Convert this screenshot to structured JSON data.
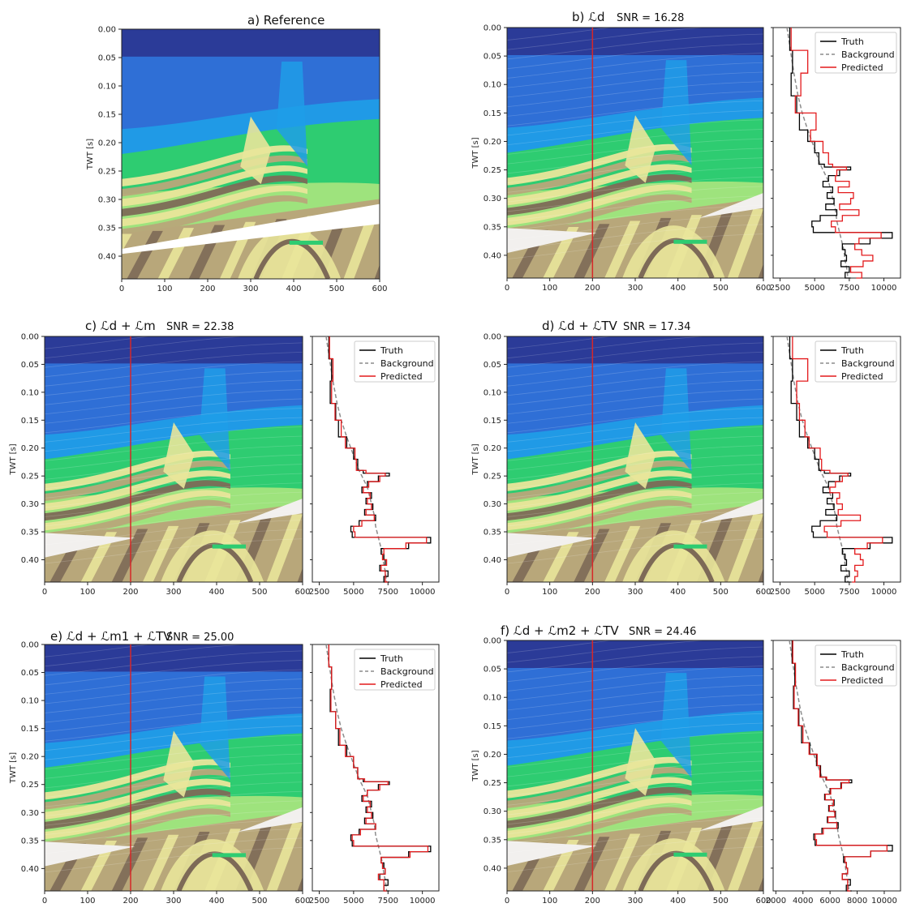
{
  "colors": {
    "truth": "#000000",
    "background": "#8c8c8c",
    "predicted": "#e31a1c",
    "trace_marker": "#d62728",
    "water_top": "#2b3b98",
    "shallow_blue": "#2f6fd6",
    "mid_blue": "#1f9ee8",
    "green": "#2ecc71",
    "light_green": "#9ee37d",
    "yellow": "#e9e59a",
    "tan": "#b8a77a",
    "brown": "#7d6a57",
    "white_body": "#f2f0ee"
  },
  "axis_labels": {
    "ylabel": "TWT [s]"
  },
  "legend_labels": [
    "Truth",
    "Background",
    "Predicted"
  ],
  "chart_data": [
    {
      "type": "heatmap",
      "id": "a",
      "title": "a) Reference",
      "snr": "",
      "x_ticks": [
        "0",
        "100",
        "200",
        "300",
        "400",
        "500",
        "600"
      ],
      "y_ticks": [
        "0.00",
        "0.05",
        "0.10",
        "0.15",
        "0.20",
        "0.25",
        "0.30",
        "0.35",
        "0.40"
      ],
      "xlim": [
        0,
        600
      ],
      "ylim": [
        0.44,
        0.0
      ],
      "ylabel": "TWT [s]",
      "trace_position": null
    },
    {
      "type": "heatmap",
      "id": "b",
      "title": "b) ℒd",
      "snr": "SNR = 16.28",
      "x_ticks": [
        "0",
        "100",
        "200",
        "300",
        "400",
        "500",
        "600"
      ],
      "y_ticks": [
        "0.00",
        "0.05",
        "0.10",
        "0.15",
        "0.20",
        "0.25",
        "0.30",
        "0.35",
        "0.40"
      ],
      "xlim": [
        0,
        600
      ],
      "ylim": [
        0.44,
        0.0
      ],
      "ylabel": "TWT [s]",
      "trace_position": 200,
      "profile": {
        "x_ticks": [
          "2500",
          "5000",
          "7500",
          "10000"
        ],
        "xlim": [
          2000,
          11200
        ],
        "t": [
          0.0,
          0.04,
          0.08,
          0.12,
          0.15,
          0.18,
          0.2,
          0.22,
          0.24,
          0.245,
          0.25,
          0.26,
          0.27,
          0.28,
          0.29,
          0.3,
          0.31,
          0.32,
          0.33,
          0.34,
          0.35,
          0.36,
          0.37,
          0.38,
          0.39,
          0.4,
          0.41,
          0.42,
          0.43,
          0.44
        ],
        "truth": [
          3200,
          3400,
          3300,
          3700,
          3900,
          4500,
          5000,
          5300,
          5700,
          7600,
          6800,
          6000,
          5600,
          6300,
          5900,
          6400,
          5800,
          6600,
          5400,
          4800,
          4900,
          10600,
          9000,
          7000,
          7200,
          7300,
          6900,
          7500,
          7200,
          7600
        ],
        "background": [
          3000,
          3250,
          3500,
          3800,
          4100,
          4500,
          4800,
          5100,
          5400,
          5500,
          5600,
          5800,
          6000,
          6100,
          6200,
          6300,
          6400,
          6500,
          6550,
          6600,
          6700,
          6800,
          6900,
          7000,
          7100,
          7150,
          7200,
          7300,
          7350,
          7400
        ],
        "predicted": [
          3300,
          4500,
          4000,
          3600,
          5100,
          4700,
          5600,
          6000,
          6300,
          7300,
          6600,
          6500,
          7500,
          6700,
          7800,
          7600,
          6800,
          8200,
          7000,
          6200,
          6500,
          9800,
          8200,
          7900,
          8400,
          9200,
          8500,
          7600,
          8400,
          8000
        ]
      }
    },
    {
      "type": "heatmap",
      "id": "c",
      "title": "c) ℒd + ℒm",
      "snr": "SNR = 22.38",
      "x_ticks": [
        "0",
        "100",
        "200",
        "300",
        "400",
        "500",
        "600"
      ],
      "y_ticks": [
        "0.00",
        "0.05",
        "0.10",
        "0.15",
        "0.20",
        "0.25",
        "0.30",
        "0.35",
        "0.40"
      ],
      "xlim": [
        0,
        600
      ],
      "ylim": [
        0.44,
        0.0
      ],
      "ylabel": "TWT [s]",
      "trace_position": 200,
      "profile": {
        "x_ticks": [
          "2500",
          "5000",
          "7500",
          "10000"
        ],
        "xlim": [
          2000,
          11200
        ],
        "t": [
          0.0,
          0.04,
          0.08,
          0.12,
          0.15,
          0.18,
          0.2,
          0.22,
          0.24,
          0.245,
          0.25,
          0.26,
          0.27,
          0.28,
          0.29,
          0.3,
          0.31,
          0.32,
          0.33,
          0.34,
          0.35,
          0.36,
          0.37,
          0.38,
          0.39,
          0.4,
          0.41,
          0.42,
          0.43,
          0.44
        ],
        "truth": [
          3200,
          3400,
          3300,
          3700,
          3900,
          4500,
          5000,
          5300,
          5700,
          7600,
          6800,
          6000,
          5600,
          6300,
          5900,
          6400,
          5800,
          6600,
          5400,
          4800,
          4900,
          10600,
          9000,
          7000,
          7200,
          7300,
          6900,
          7500,
          7200,
          7600
        ],
        "background": [
          3000,
          3250,
          3500,
          3800,
          4100,
          4500,
          4800,
          5100,
          5400,
          5500,
          5600,
          5800,
          6000,
          6100,
          6200,
          6300,
          6400,
          6500,
          6550,
          6600,
          6700,
          6800,
          6900,
          7000,
          7100,
          7150,
          7200,
          7300,
          7350,
          7400
        ],
        "predicted": [
          3250,
          3500,
          3400,
          3650,
          4100,
          4400,
          5100,
          5200,
          5900,
          7300,
          6900,
          6100,
          5700,
          6200,
          6000,
          6300,
          5900,
          6500,
          5600,
          5000,
          5100,
          10300,
          8800,
          7200,
          7100,
          7400,
          7000,
          7300,
          7300,
          7500
        ]
      }
    },
    {
      "type": "heatmap",
      "id": "d",
      "title": "d) ℒd + ℒTV",
      "snr": "SNR = 17.34",
      "x_ticks": [
        "0",
        "100",
        "200",
        "300",
        "400",
        "500",
        "600"
      ],
      "y_ticks": [
        "0.00",
        "0.05",
        "0.10",
        "0.15",
        "0.20",
        "0.25",
        "0.30",
        "0.35",
        "0.40"
      ],
      "xlim": [
        0,
        600
      ],
      "ylim": [
        0.44,
        0.0
      ],
      "ylabel": "TWT [s]",
      "trace_position": 200,
      "profile": {
        "x_ticks": [
          "2500",
          "5000",
          "7500",
          "10000"
        ],
        "xlim": [
          2000,
          11200
        ],
        "t": [
          0.0,
          0.04,
          0.08,
          0.12,
          0.15,
          0.18,
          0.2,
          0.22,
          0.24,
          0.245,
          0.25,
          0.26,
          0.27,
          0.28,
          0.29,
          0.3,
          0.31,
          0.32,
          0.33,
          0.34,
          0.35,
          0.36,
          0.37,
          0.38,
          0.39,
          0.4,
          0.41,
          0.42,
          0.43,
          0.44
        ],
        "truth": [
          3200,
          3400,
          3300,
          3700,
          3900,
          4500,
          5000,
          5300,
          5700,
          7600,
          6800,
          6000,
          5600,
          6300,
          5900,
          6400,
          5800,
          6600,
          5400,
          4800,
          4900,
          10600,
          9000,
          7000,
          7200,
          7300,
          6900,
          7500,
          7200,
          7600
        ],
        "background": [
          3000,
          3250,
          3500,
          3800,
          4100,
          4500,
          4800,
          5100,
          5400,
          5500,
          5600,
          5800,
          6000,
          6100,
          6200,
          6300,
          6400,
          6500,
          6550,
          6600,
          6700,
          6800,
          6900,
          7000,
          7100,
          7150,
          7200,
          7300,
          7350,
          7400
        ],
        "predicted": [
          3400,
          4500,
          3700,
          3900,
          4300,
          4600,
          5400,
          5500,
          6100,
          7400,
          7000,
          6500,
          6100,
          6800,
          6600,
          7000,
          6700,
          8300,
          6900,
          5700,
          5900,
          9900,
          8800,
          7900,
          8300,
          8500,
          7900,
          8100,
          7900,
          7700
        ]
      }
    },
    {
      "type": "heatmap",
      "id": "e",
      "title": "e) ℒd + ℒm1 + ℒTV",
      "snr": "SNR = 25.00",
      "x_ticks": [
        "0",
        "100",
        "200",
        "300",
        "400",
        "500",
        "600"
      ],
      "y_ticks": [
        "0.00",
        "0.05",
        "0.10",
        "0.15",
        "0.20",
        "0.25",
        "0.30",
        "0.35",
        "0.40"
      ],
      "xlim": [
        0,
        600
      ],
      "ylim": [
        0.44,
        0.0
      ],
      "ylabel": "TWT [s]",
      "trace_position": 200,
      "profile": {
        "x_ticks": [
          "2500",
          "5000",
          "7500",
          "10000"
        ],
        "xlim": [
          2000,
          11200
        ],
        "t": [
          0.0,
          0.04,
          0.08,
          0.12,
          0.15,
          0.18,
          0.2,
          0.22,
          0.24,
          0.245,
          0.25,
          0.26,
          0.27,
          0.28,
          0.29,
          0.3,
          0.31,
          0.32,
          0.33,
          0.34,
          0.35,
          0.36,
          0.37,
          0.38,
          0.39,
          0.4,
          0.41,
          0.42,
          0.43,
          0.44
        ],
        "truth": [
          3200,
          3400,
          3300,
          3700,
          3900,
          4500,
          5000,
          5300,
          5700,
          7600,
          6800,
          6000,
          5600,
          6300,
          5900,
          6400,
          5800,
          6600,
          5400,
          4800,
          4900,
          10600,
          9000,
          7000,
          7200,
          7300,
          6900,
          7500,
          7200,
          7600
        ],
        "background": [
          3000,
          3250,
          3500,
          3800,
          4100,
          4500,
          4800,
          5100,
          5400,
          5500,
          5600,
          5800,
          6000,
          6100,
          6200,
          6300,
          6400,
          6500,
          6550,
          6600,
          6700,
          6800,
          6900,
          7000,
          7100,
          7150,
          7200,
          7300,
          7350,
          7400
        ],
        "predicted": [
          3200,
          3400,
          3350,
          3700,
          4000,
          4400,
          5000,
          5300,
          5800,
          7500,
          6900,
          6000,
          5700,
          6200,
          6000,
          6300,
          5900,
          6600,
          5500,
          4900,
          5000,
          10400,
          9100,
          7000,
          7100,
          7300,
          6800,
          7200,
          7200,
          7400
        ]
      }
    },
    {
      "type": "heatmap",
      "id": "f",
      "title": "f) ℒd + ℒm2 + ℒTV",
      "snr": "SNR = 24.46",
      "x_ticks": [
        "0",
        "100",
        "200",
        "300",
        "400",
        "500",
        "600"
      ],
      "y_ticks": [
        "0.00",
        "0.05",
        "0.10",
        "0.15",
        "0.20",
        "0.25",
        "0.30",
        "0.35",
        "0.40"
      ],
      "xlim": [
        0,
        600
      ],
      "ylim": [
        0.44,
        0.0
      ],
      "ylabel": "TWT [s]",
      "trace_position": 200,
      "profile": {
        "x_ticks": [
          "2000",
          "4000",
          "6000",
          "8000",
          "10000"
        ],
        "xlim": [
          1800,
          11200
        ],
        "t": [
          0.0,
          0.04,
          0.08,
          0.12,
          0.15,
          0.18,
          0.2,
          0.22,
          0.24,
          0.245,
          0.25,
          0.26,
          0.27,
          0.28,
          0.29,
          0.3,
          0.31,
          0.32,
          0.33,
          0.34,
          0.35,
          0.36,
          0.37,
          0.38,
          0.39,
          0.4,
          0.41,
          0.42,
          0.43,
          0.44
        ],
        "truth": [
          3200,
          3400,
          3300,
          3700,
          3900,
          4500,
          5000,
          5300,
          5700,
          7600,
          6800,
          6000,
          5600,
          6300,
          5900,
          6400,
          5800,
          6600,
          5400,
          4800,
          4900,
          10600,
          9000,
          7000,
          7200,
          7300,
          6900,
          7500,
          7200,
          7600
        ],
        "background": [
          3000,
          3250,
          3500,
          3800,
          4100,
          4500,
          4800,
          5100,
          5400,
          5500,
          5600,
          5800,
          6000,
          6100,
          6200,
          6300,
          6400,
          6500,
          6550,
          6600,
          6700,
          6800,
          6900,
          7000,
          7100,
          7150,
          7200,
          7300,
          7350,
          7400
        ],
        "predicted": [
          3250,
          3450,
          3350,
          3650,
          4000,
          4450,
          5050,
          5250,
          5750,
          7400,
          6850,
          6050,
          5650,
          6250,
          5950,
          6350,
          5850,
          6500,
          5500,
          4900,
          5000,
          10200,
          9000,
          7100,
          7200,
          7300,
          6900,
          7300,
          7300,
          7500
        ]
      }
    }
  ]
}
